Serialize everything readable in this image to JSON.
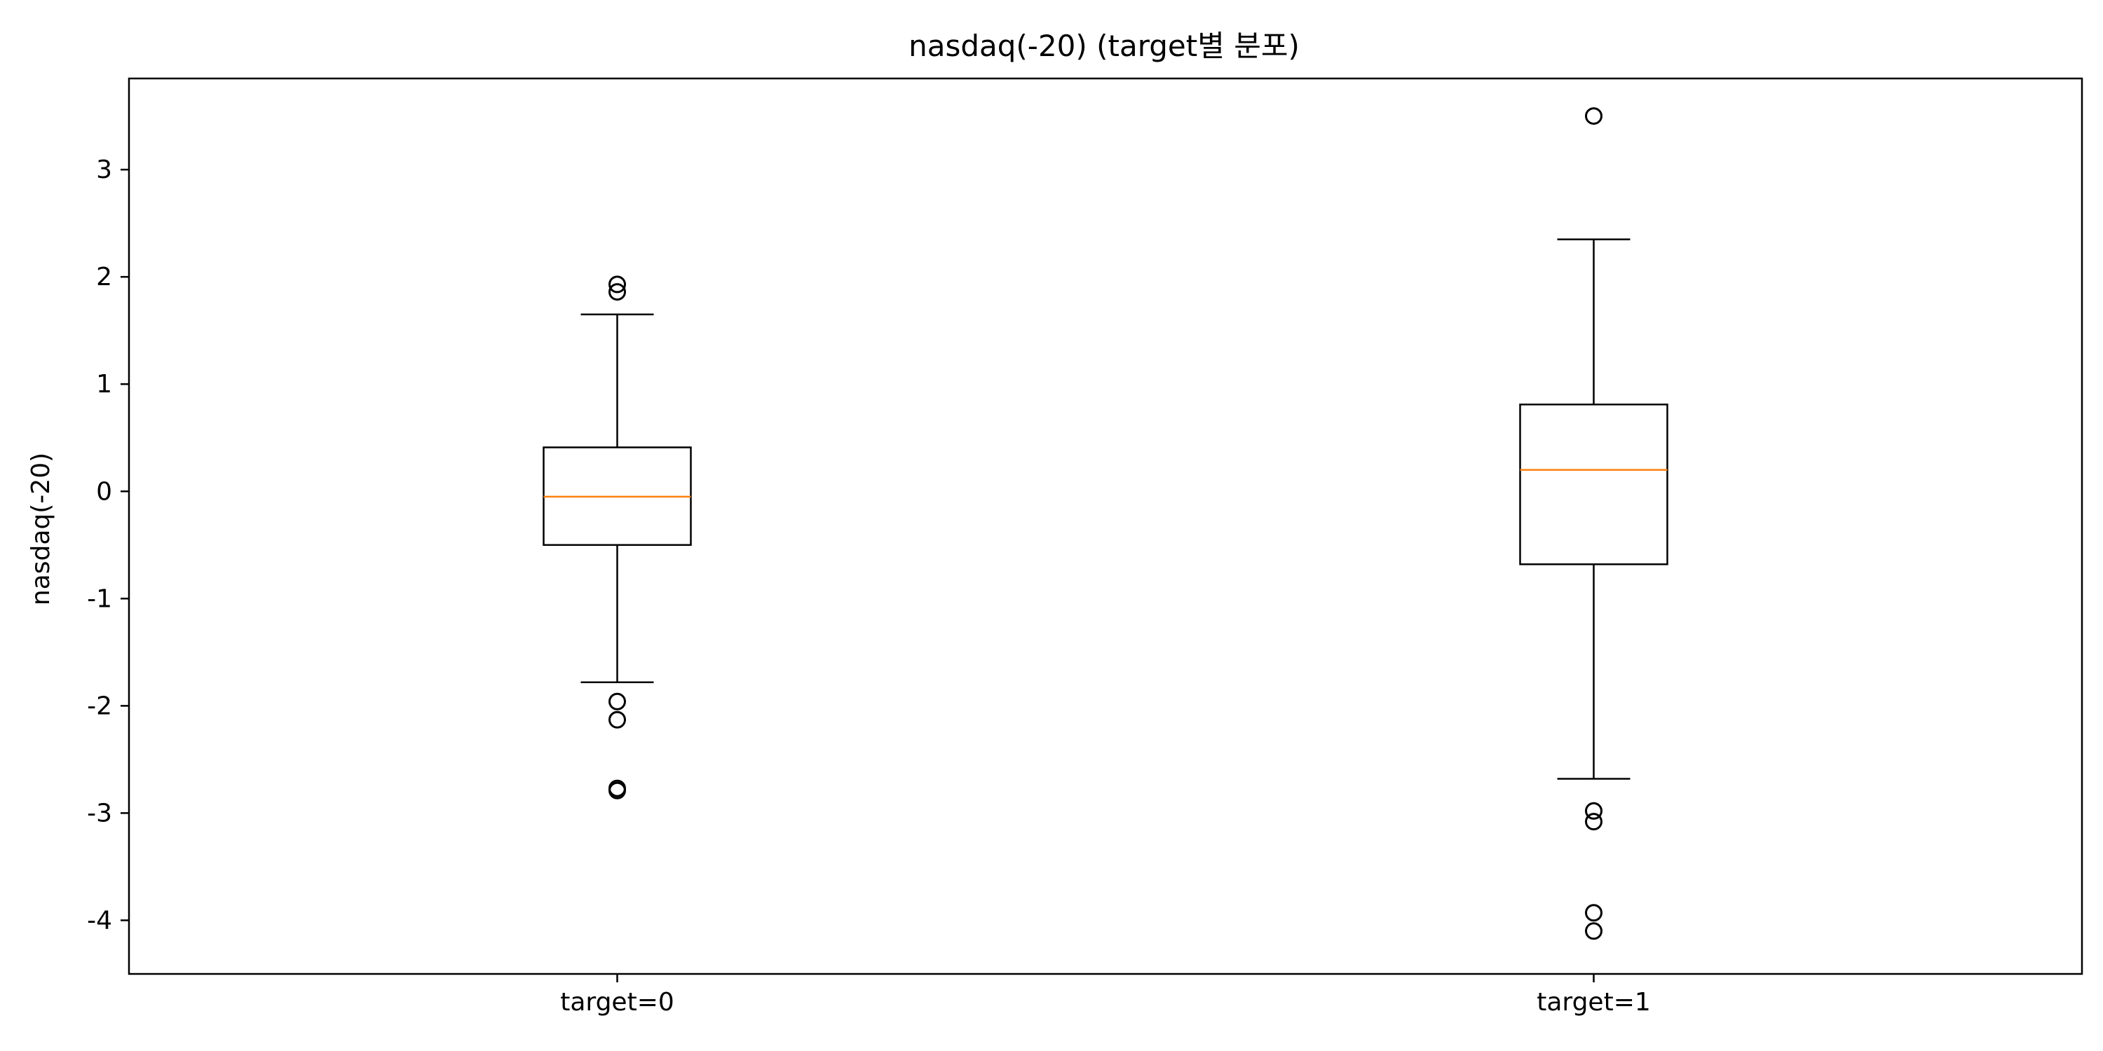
{
  "chart_data": {
    "type": "box",
    "title": "nasdaq(-20) (target별 분포)",
    "xlabel": "",
    "ylabel": "nasdaq(-20)",
    "ylim": [
      -4.5,
      3.85
    ],
    "yticks": [
      -4,
      -3,
      -2,
      -1,
      0,
      1,
      2,
      3
    ],
    "ytick_labels": [
      "-4",
      "-3",
      "-2",
      "-1",
      "0",
      "1",
      "2",
      "3"
    ],
    "categories": [
      "target=0",
      "target=1"
    ],
    "grid": false,
    "legend": "none",
    "boxes": [
      {
        "label": "target=0",
        "whisker_low": -1.78,
        "q1": -0.5,
        "median": -0.05,
        "q3": 0.41,
        "whisker_high": 1.65,
        "outliers": [
          1.93,
          1.86,
          -1.96,
          -2.13,
          -2.77,
          -2.79
        ]
      },
      {
        "label": "target=1",
        "whisker_low": -2.68,
        "q1": -0.68,
        "median": 0.2,
        "q3": 0.81,
        "whisker_high": 2.35,
        "outliers": [
          3.5,
          -2.98,
          -3.08,
          -3.93,
          -4.1
        ]
      }
    ],
    "colors": {
      "box": "#000000",
      "median": "#ff7f0e",
      "whisker": "#000000",
      "outlier": "#000000"
    }
  }
}
